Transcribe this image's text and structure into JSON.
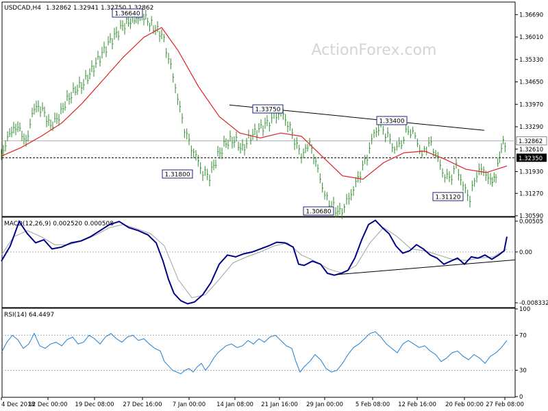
{
  "header": {
    "symbol": "USDCAD,H4",
    "ohlc": "1.32862 1.32941 1.32750 1.32862"
  },
  "watermark": "ActionForex.com",
  "colors": {
    "price": "#2e8b2e",
    "ema": "#e02020",
    "macd": "#00008b",
    "signal": "#a0a0a0",
    "rsi": "#1e7fd0",
    "grid": "#c8c8c8",
    "axis": "#000000"
  },
  "chart_data": [
    {
      "type": "line",
      "panel": "price",
      "ylim": [
        1.3059,
        1.3705
      ],
      "y_ticks": [
        "1.36690",
        "1.36010",
        "1.35330",
        "1.34650",
        "1.33970",
        "1.33290",
        "1.32610",
        "1.31930",
        "1.31270",
        "1.30590"
      ],
      "y_tick_values": [
        1.3669,
        1.3601,
        1.3533,
        1.3465,
        1.3397,
        1.3329,
        1.3261,
        1.3193,
        1.3127,
        1.3059
      ],
      "current_price": {
        "value": 1.32862,
        "label": "1.32862"
      },
      "support": {
        "value": 1.3235,
        "label": "1.32350"
      },
      "x_ticks": [
        "4 Dec 2018",
        "12 Dec 00:00",
        "19 Dec 08:00",
        "27 Dec 16:00",
        "7 Jan 00:00",
        "14 Jan 08:00",
        "21 Jan 16:00",
        "29 Jan 00:00",
        "5 Feb 08:00",
        "12 Feb 16:00",
        "20 Feb 00:00",
        "27 Feb 08:00"
      ],
      "x_tick_values": [
        2,
        70,
        138,
        208,
        276,
        343,
        408,
        474,
        544,
        609,
        678,
        737
      ],
      "series": [
        {
          "role": "price",
          "x": [
            2,
            14,
            26,
            38,
            50,
            62,
            74,
            86,
            98,
            110,
            122,
            134,
            146,
            158,
            170,
            182,
            196,
            210,
            224,
            236,
            246,
            256,
            266,
            276,
            286,
            296,
            306,
            318,
            330,
            342,
            354,
            366,
            378,
            390,
            400,
            410,
            420,
            430,
            440,
            452,
            464,
            474,
            484,
            496,
            506,
            516,
            526,
            536,
            546,
            556,
            566,
            576,
            586,
            596,
            606,
            616,
            626,
            636,
            646,
            656,
            666,
            676,
            686,
            696,
            706,
            716,
            724,
            732,
            740
          ],
          "y": [
            1.324,
            1.331,
            1.333,
            1.328,
            1.339,
            1.338,
            1.333,
            1.336,
            1.341,
            1.344,
            1.346,
            1.35,
            1.354,
            1.358,
            1.361,
            1.364,
            1.3655,
            1.3664,
            1.363,
            1.361,
            1.354,
            1.345,
            1.335,
            1.328,
            1.324,
            1.319,
            1.318,
            1.324,
            1.328,
            1.329,
            1.326,
            1.33,
            1.332,
            1.334,
            1.336,
            1.3375,
            1.334,
            1.329,
            1.324,
            1.328,
            1.32,
            1.312,
            1.309,
            1.3068,
            1.31,
            1.314,
            1.319,
            1.324,
            1.331,
            1.333,
            1.33,
            1.326,
            1.328,
            1.332,
            1.33,
            1.324,
            1.328,
            1.325,
            1.319,
            1.317,
            1.321,
            1.315,
            1.3112,
            1.319,
            1.32,
            1.316,
            1.318,
            1.327,
            1.3286
          ]
        },
        {
          "role": "ema",
          "x": [
            2,
            30,
            60,
            90,
            120,
            150,
            180,
            210,
            236,
            260,
            290,
            320,
            350,
            380,
            410,
            440,
            470,
            500,
            530,
            560,
            590,
            620,
            650,
            680,
            710,
            740
          ],
          "y": [
            1.324,
            1.3265,
            1.33,
            1.334,
            1.34,
            1.347,
            1.354,
            1.36,
            1.363,
            1.356,
            1.345,
            1.336,
            1.331,
            1.3295,
            1.331,
            1.33,
            1.324,
            1.318,
            1.317,
            1.322,
            1.325,
            1.3255,
            1.323,
            1.32,
            1.319,
            1.321
          ]
        },
        {
          "role": "trendline",
          "x": [
            335,
            707
          ],
          "y": [
            1.3395,
            1.3318
          ]
        }
      ],
      "annotations": [
        {
          "label": "1.36640",
          "x": 208,
          "y": 1.3664
        },
        {
          "label": "1.33750",
          "x": 408,
          "y": 1.3375
        },
        {
          "label": "1.33400",
          "x": 572,
          "y": 1.334
        },
        {
          "label": "1.31800",
          "x": 284,
          "y": 1.318
        },
        {
          "label": "1.30680",
          "x": 494,
          "y": 1.3068
        },
        {
          "label": "1.31120",
          "x": 680,
          "y": 1.3112
        }
      ]
    },
    {
      "type": "line",
      "panel": "macd",
      "title": "MACD(12,26,9) 0.002520 0.000508",
      "ylim": [
        -0.009,
        0.0056
      ],
      "y_ticks": [
        "0.00505",
        "0.00",
        "-0.008332"
      ],
      "y_tick_values": [
        0.00505,
        0.0,
        -0.008332
      ],
      "series": [
        {
          "role": "macd",
          "x": [
            2,
            15,
            28,
            40,
            52,
            64,
            76,
            90,
            104,
            118,
            132,
            146,
            160,
            174,
            188,
            202,
            216,
            228,
            238,
            246,
            254,
            264,
            274,
            284,
            296,
            308,
            320,
            332,
            344,
            356,
            368,
            380,
            392,
            404,
            416,
            428,
            436,
            444,
            456,
            468,
            478,
            488,
            498,
            508,
            518,
            528,
            538,
            548,
            558,
            568,
            578,
            588,
            598,
            608,
            618,
            628,
            638,
            648,
            658,
            668,
            678,
            688,
            698,
            708,
            718,
            728,
            736,
            740
          ],
          "y": [
            -0.0015,
            0.001,
            0.005,
            0.003,
            0.0015,
            0.002,
            0.0005,
            0.0008,
            0.0015,
            0.0018,
            0.0025,
            0.0035,
            0.0045,
            0.005,
            0.004,
            0.0035,
            0.0028,
            0.0015,
            -0.0015,
            -0.0045,
            -0.0068,
            -0.008,
            -0.0085,
            -0.0082,
            -0.007,
            -0.005,
            -0.002,
            -0.0005,
            -0.0008,
            -0.0003,
            0.0,
            0.0005,
            0.001,
            0.0016,
            0.0015,
            0.0008,
            -0.002,
            -0.0022,
            -0.0015,
            -0.002,
            -0.0035,
            -0.0038,
            -0.0035,
            -0.003,
            -0.001,
            0.002,
            0.0045,
            0.0052,
            0.004,
            0.003,
            0.001,
            -0.0002,
            0.0002,
            0.0012,
            0.0005,
            -0.0005,
            -0.001,
            -0.002,
            -0.0015,
            -0.001,
            -0.002,
            -0.0008,
            -0.001,
            -0.0005,
            -0.0012,
            -0.0005,
            0.0002,
            0.0025
          ]
        },
        {
          "role": "signal",
          "x": [
            2,
            20,
            40,
            60,
            80,
            100,
            120,
            140,
            160,
            180,
            200,
            220,
            240,
            260,
            280,
            300,
            320,
            340,
            360,
            380,
            400,
            420,
            440,
            460,
            480,
            500,
            520,
            540,
            560,
            580,
            600,
            620,
            640,
            660,
            680,
            700,
            720,
            740
          ],
          "y": [
            -0.0005,
            0.0025,
            0.0035,
            0.0025,
            0.0012,
            0.0012,
            0.0018,
            0.0028,
            0.004,
            0.0045,
            0.0038,
            0.003,
            0.001,
            -0.0045,
            -0.0075,
            -0.007,
            -0.0045,
            -0.0018,
            -0.0008,
            0.0,
            0.001,
            0.0015,
            -0.0005,
            -0.0015,
            -0.0028,
            -0.0035,
            -0.0022,
            0.0015,
            0.004,
            0.0025,
            0.0005,
            0.0002,
            -0.0005,
            -0.0012,
            -0.0014,
            -0.001,
            -0.0008,
            0.0005
          ]
        },
        {
          "role": "trendline",
          "x": [
            492,
            752
          ],
          "y": [
            -0.0037,
            -0.0013
          ]
        }
      ]
    },
    {
      "type": "line",
      "panel": "rsi",
      "title": "RSI(14) 64.4497",
      "ylim": [
        0,
        100
      ],
      "y_ticks": [
        "100",
        "70",
        "30",
        "0"
      ],
      "y_tick_values": [
        100,
        70,
        30,
        0
      ],
      "series": [
        {
          "role": "rsi",
          "x": [
            2,
            10,
            18,
            26,
            34,
            42,
            50,
            58,
            66,
            74,
            82,
            90,
            98,
            106,
            114,
            122,
            130,
            138,
            146,
            154,
            162,
            170,
            178,
            186,
            194,
            202,
            210,
            218,
            226,
            234,
            240,
            246,
            252,
            258,
            264,
            270,
            276,
            282,
            288,
            294,
            300,
            306,
            312,
            318,
            324,
            330,
            338,
            346,
            354,
            362,
            370,
            378,
            386,
            394,
            402,
            410,
            418,
            426,
            432,
            438,
            444,
            452,
            460,
            468,
            476,
            484,
            492,
            500,
            508,
            516,
            524,
            532,
            540,
            548,
            556,
            564,
            572,
            580,
            588,
            596,
            604,
            612,
            620,
            628,
            636,
            644,
            652,
            660,
            668,
            676,
            684,
            692,
            700,
            708,
            716,
            724,
            732,
            740
          ],
          "y": [
            50,
            62,
            70,
            65,
            55,
            60,
            72,
            58,
            55,
            60,
            62,
            58,
            65,
            68,
            60,
            62,
            70,
            66,
            60,
            68,
            72,
            66,
            62,
            68,
            70,
            64,
            66,
            60,
            55,
            52,
            40,
            35,
            30,
            28,
            26,
            30,
            32,
            28,
            34,
            38,
            30,
            36,
            44,
            50,
            54,
            58,
            60,
            56,
            58,
            64,
            60,
            66,
            62,
            68,
            70,
            64,
            58,
            55,
            40,
            28,
            34,
            40,
            48,
            42,
            32,
            28,
            30,
            38,
            48,
            56,
            60,
            66,
            72,
            74,
            68,
            60,
            55,
            50,
            60,
            64,
            60,
            56,
            58,
            52,
            48,
            40,
            44,
            50,
            52,
            46,
            42,
            48,
            44,
            38,
            46,
            50,
            56,
            64
          ]
        }
      ]
    }
  ]
}
